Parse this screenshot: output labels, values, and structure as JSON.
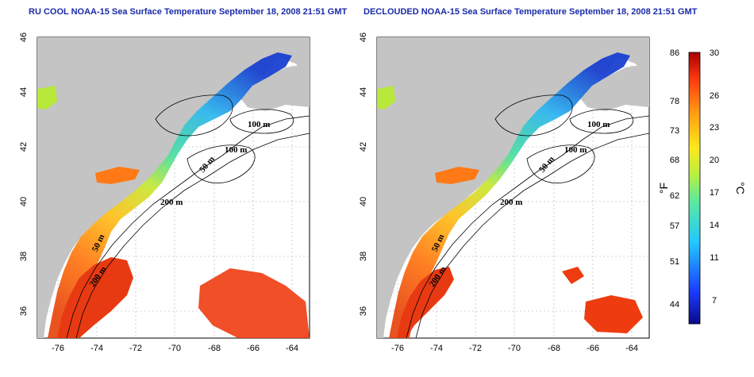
{
  "panels": [
    {
      "title": "RU COOL NOAA-15 Sea Surface Temperature September 18, 2008 21:51 GMT",
      "contour_labels": [
        "100 m",
        "100 m",
        "50 m",
        "200 m",
        "50 m",
        "200 m"
      ]
    },
    {
      "title": "DECLOUDED NOAA-15 Sea Surface Temperature September 18, 2008 21:51 GMT",
      "contour_labels": [
        "100 m",
        "100 m",
        "50 m",
        "200 m",
        "50 m",
        "200 m"
      ]
    }
  ],
  "lon_ticks": [
    "-76",
    "-74",
    "-72",
    "-70",
    "-68",
    "-66",
    "-64"
  ],
  "lat_ticks": [
    "46",
    "44",
    "42",
    "40",
    "38",
    "36"
  ],
  "colorbar": {
    "fahrenheit_ticks": [
      "86",
      "78",
      "73",
      "68",
      "62",
      "57",
      "51",
      "44"
    ],
    "celsius_ticks": [
      "30",
      "26",
      "23",
      "20",
      "17",
      "14",
      "11",
      "7"
    ],
    "fahrenheit_label": "°F",
    "celsius_label": "°C"
  },
  "colors": {
    "land": "#c4c4c4",
    "title": "#1a2aa8",
    "cold": "#0a1a8a",
    "warm": "#a80000"
  }
}
